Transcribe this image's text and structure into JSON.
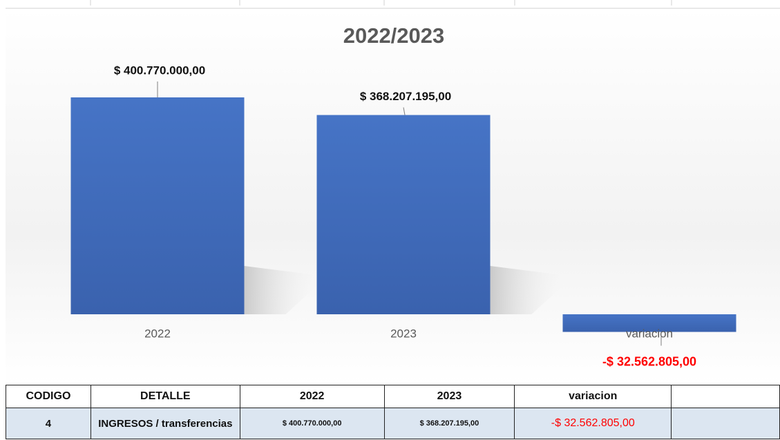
{
  "chart_data": {
    "type": "bar",
    "title": "2022/2023",
    "categories": [
      "2022",
      "2023",
      "variacion"
    ],
    "values": [
      400770000,
      368207195,
      -32562805
    ],
    "value_labels": [
      "$ 400.770.000,00",
      "$ 368.207.195,00",
      "-$ 32.562.805,00"
    ],
    "color": "#4472c4"
  },
  "table": {
    "headers": [
      "CODIGO",
      "DETALLE",
      "2022",
      "2023",
      "variacion"
    ],
    "rows": [
      [
        "4",
        "INGRESOS / transferencias",
        "$ 400.770.000,00",
        "$ 368.207.195,00",
        "-$ 32.562.805,00"
      ]
    ]
  }
}
